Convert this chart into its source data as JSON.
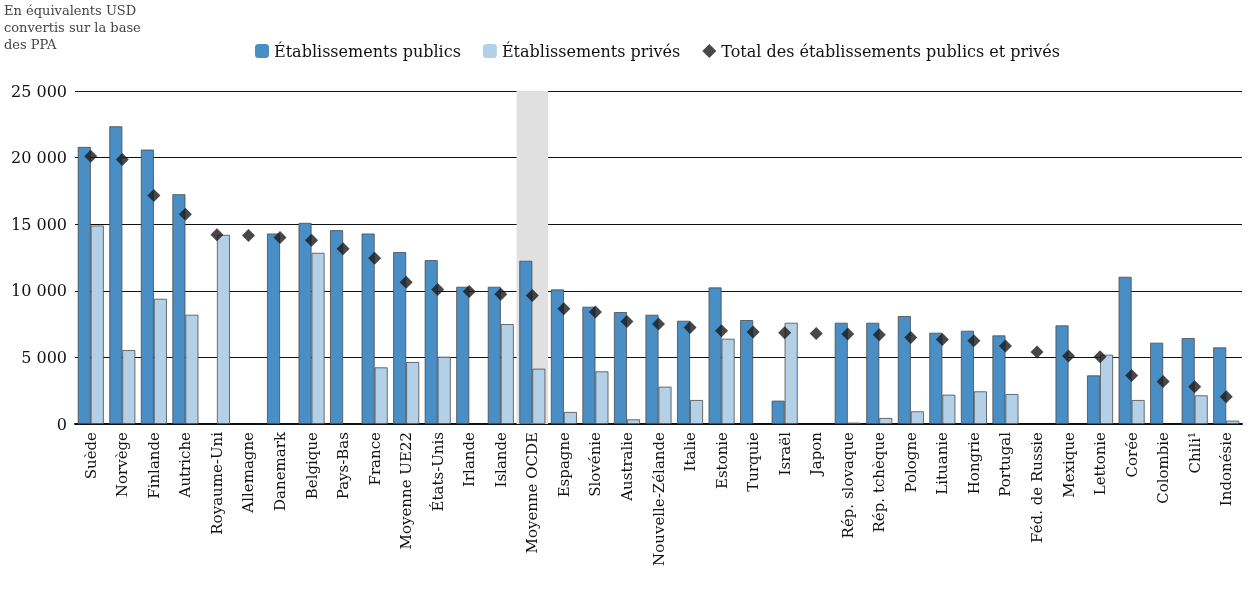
{
  "chart_data": {
    "type": "bar",
    "ylabel": "En équivalents USD convertis sur la base des PPA",
    "categories": [
      "Suède",
      "Norvège",
      "Finlande",
      "Autriche",
      "Royaume-Uni",
      "Allemagne",
      "Danemark",
      "Belgique",
      "Pays-Bas",
      "France",
      "Moyenne UE22",
      "États-Unis",
      "Irlande",
      "Islande",
      "Moyenne OCDE",
      "Espagne",
      "Slovénie",
      "Australie",
      "Nouvelle-Zélande",
      "Italie",
      "Estonie",
      "Turquie",
      "Israël",
      "Japon",
      "Rép. slovaque",
      "Rép. tchèque",
      "Pologne",
      "Lituanie",
      "Hongrie",
      "Portugal",
      "Féd. de Russie",
      "Mexique",
      "Lettonie",
      "Corée",
      "Colombie",
      "Chili¹",
      "Indonésie"
    ],
    "series": [
      {
        "name": "Établissements publics",
        "color": "#4a8ec6",
        "values": [
          20800,
          22350,
          20600,
          17250,
          null,
          null,
          14300,
          15100,
          14550,
          14300,
          12900,
          12300,
          10300,
          10300,
          12250,
          10100,
          8800,
          8400,
          8200,
          7750,
          10250,
          7800,
          1750,
          null,
          7600,
          7600,
          8100,
          6850,
          7000,
          6650,
          null,
          7400,
          3650,
          11050,
          6100,
          6450,
          5750
        ]
      },
      {
        "name": "Établissements privés",
        "color": "#b4d0e6",
        "values": [
          14900,
          5550,
          9400,
          8200,
          14200,
          null,
          null,
          12850,
          null,
          4250,
          4650,
          5050,
          null,
          7500,
          4150,
          900,
          3950,
          350,
          2800,
          1800,
          6400,
          null,
          7600,
          null,
          100,
          450,
          950,
          2200,
          2450,
          2250,
          null,
          null,
          5200,
          1800,
          null,
          2150,
          250
        ]
      },
      {
        "name": "Total des établissements publics et privés",
        "type": "scatter",
        "marker": "diamond",
        "color": "#1a1a1a",
        "values": [
          20100,
          19850,
          17150,
          15750,
          14200,
          14150,
          14000,
          13800,
          13150,
          12450,
          10650,
          10100,
          9950,
          9750,
          9650,
          8650,
          8400,
          7700,
          7500,
          7250,
          7000,
          6900,
          6850,
          6800,
          6750,
          6700,
          6500,
          6350,
          6250,
          5850,
          5400,
          5100,
          5050,
          3650,
          3200,
          2800,
          2050
        ]
      }
    ],
    "ylim": [
      0,
      25000
    ],
    "yticks": [
      {
        "value": 0,
        "label": "0"
      },
      {
        "value": 5000,
        "label": "5 000"
      },
      {
        "value": 10000,
        "label": "10 000"
      },
      {
        "value": 15000,
        "label": "15 000"
      },
      {
        "value": 20000,
        "label": "20 000"
      },
      {
        "value": 25000,
        "label": "25 000"
      }
    ],
    "bands": [
      {
        "axis": "x",
        "from": "Moyenne OCDE",
        "to": "Moyenne OCDE",
        "color": "#e0e0e0"
      }
    ],
    "grid": "y",
    "legend": "top"
  }
}
